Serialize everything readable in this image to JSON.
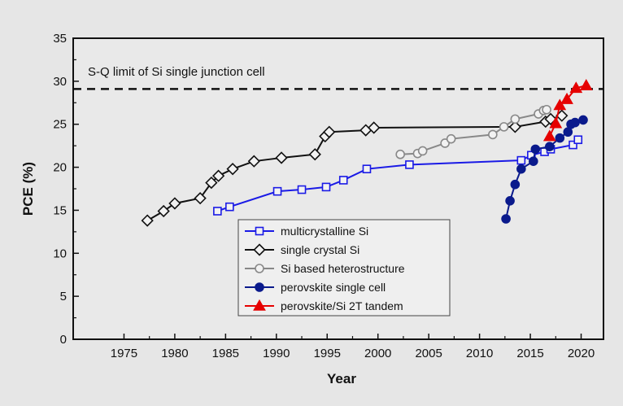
{
  "chart_data": {
    "type": "line",
    "title": "",
    "xlabel": "Year",
    "ylabel": "PCE (%)",
    "xlim": [
      1970,
      2022.2
    ],
    "ylim": [
      0,
      35
    ],
    "xticks": [
      1975,
      1980,
      1985,
      1990,
      1995,
      2000,
      2005,
      2010,
      2015,
      2020
    ],
    "yticks": [
      0,
      5,
      10,
      15,
      20,
      25,
      30,
      35
    ],
    "legend_position": "center",
    "annotation": {
      "text": "S-Q limit of Si single junction cell",
      "y": 29.1
    },
    "series": [
      {
        "name": "multicrystalline Si",
        "color": "#1a1ae6",
        "marker": "square-open",
        "x": [
          1984.2,
          1985.4,
          1990.1,
          1992.5,
          1994.9,
          1996.6,
          1998.9,
          2003.1,
          2014.1,
          2015.1,
          2016.4,
          2017.0,
          2019.2,
          2019.7
        ],
        "y": [
          14.9,
          15.4,
          17.2,
          17.4,
          17.7,
          18.5,
          19.8,
          20.3,
          20.8,
          21.4,
          21.8,
          22.1,
          22.6,
          23.2
        ]
      },
      {
        "name": "single crystal Si",
        "color": "#111111",
        "marker": "diamond-open",
        "x": [
          1977.3,
          1978.9,
          1980.0,
          1982.5,
          1983.6,
          1984.3,
          1985.7,
          1987.8,
          1990.5,
          1993.8,
          1994.8,
          1995.2,
          1998.8,
          1999.6,
          2013.5,
          2016.5,
          2017.0,
          2018.1
        ],
        "y": [
          13.8,
          14.9,
          15.8,
          16.4,
          18.2,
          19.0,
          19.8,
          20.7,
          21.1,
          21.5,
          23.6,
          24.1,
          24.3,
          24.6,
          24.7,
          25.3,
          25.6,
          26.0
        ]
      },
      {
        "name": "Si based heterostructure",
        "color": "#888888",
        "marker": "circle-open",
        "x": [
          2002.2,
          2003.9,
          2004.4,
          2006.6,
          2007.2,
          2011.3,
          2012.4,
          2013.5,
          2015.8,
          2016.3,
          2016.6
        ],
        "y": [
          21.5,
          21.6,
          21.9,
          22.8,
          23.3,
          23.8,
          24.7,
          25.6,
          26.2,
          26.6,
          26.7
        ]
      },
      {
        "name": "perovskite single cell",
        "color": "#0a1a8c",
        "marker": "circle-filled",
        "x": [
          2012.6,
          2013.0,
          2013.5,
          2014.1,
          2015.3,
          2015.5,
          2016.9,
          2017.9,
          2018.7,
          2019.0,
          2019.4,
          2020.2
        ],
        "y": [
          14.0,
          16.1,
          18.0,
          19.8,
          20.7,
          22.1,
          22.4,
          23.4,
          24.1,
          25.0,
          25.2,
          25.5
        ]
      },
      {
        "name": "perovskite/Si 2T tandem",
        "color": "#e60000",
        "marker": "triangle-filled",
        "x": [
          2016.9,
          2017.5,
          2017.9,
          2018.6,
          2019.5,
          2020.5
        ],
        "y": [
          23.6,
          25.1,
          27.2,
          27.9,
          29.2,
          29.5
        ]
      }
    ]
  }
}
